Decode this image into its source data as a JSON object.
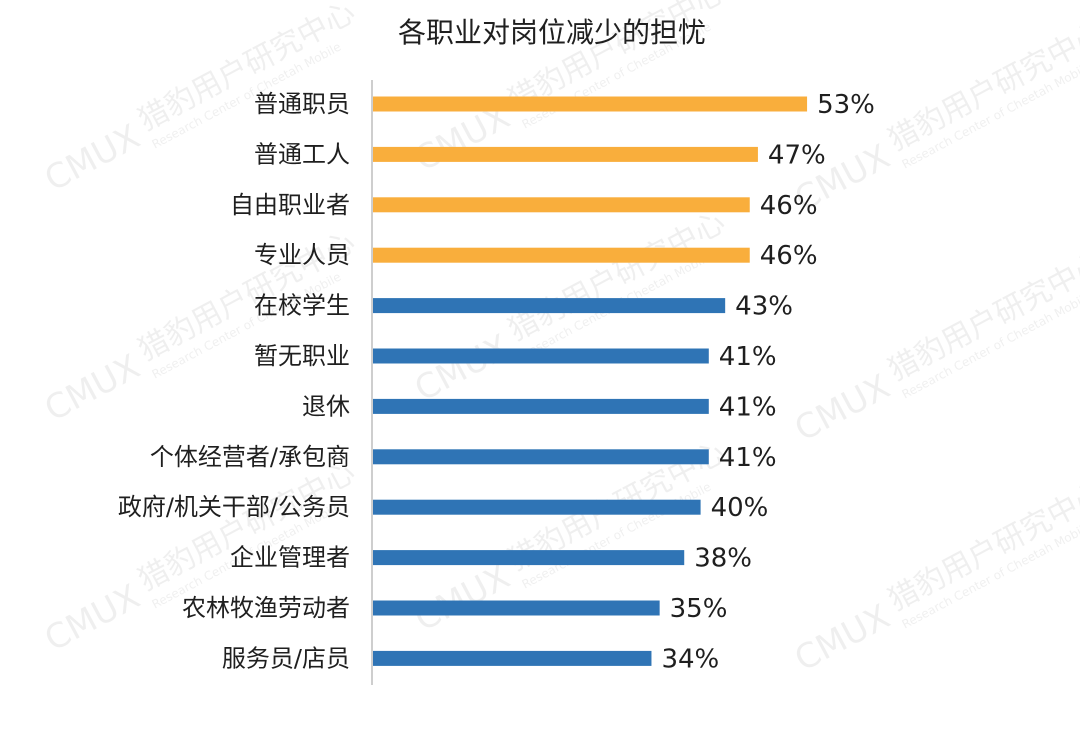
{
  "chart_data": {
    "type": "bar",
    "orientation": "horizontal",
    "title": "各职业对岗位减少的担忧",
    "xlabel": "",
    "ylabel": "",
    "xlim": [
      0,
      60
    ],
    "grid": false,
    "legend": "none",
    "value_suffix": "%",
    "colors": {
      "highlight": "#F9AE3C",
      "normal": "#2F74B5"
    },
    "categories": [
      "普通职员",
      "普通工人",
      "自由职业者",
      "专业人员",
      "在校学生",
      "暂无职业",
      "退休",
      "个体经营者/承包商",
      "政府/机关干部/公务员",
      "企业管理者",
      "农林牧渔劳动者",
      "服务员/店员"
    ],
    "values": [
      53,
      47,
      46,
      46,
      43,
      41,
      41,
      41,
      40,
      38,
      35,
      34
    ],
    "highlighted": [
      true,
      true,
      true,
      true,
      false,
      false,
      false,
      false,
      false,
      false,
      false,
      false
    ]
  },
  "watermark": {
    "text": "猎豹用户研究中心",
    "subtext": "Research Center of Cheetah Mobile",
    "logo_text": "CMUX"
  }
}
